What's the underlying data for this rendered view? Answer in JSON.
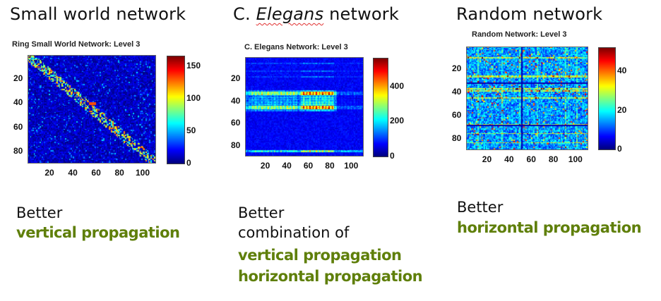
{
  "headings": {
    "small_world": "Small world network",
    "elegans_prefix": "C. ",
    "elegans_italic": "Elegans",
    "elegans_suffix": " network",
    "random": "Random network"
  },
  "captions": {
    "small_world": {
      "line1": "Better",
      "line2": "vertical propagation"
    },
    "elegans": {
      "line1": "Better",
      "line2": "combination of",
      "line3": "vertical propagation",
      "line4": "horizontal propagation"
    },
    "random": {
      "line1": "Better",
      "line2": "horizontal propagation"
    }
  },
  "colors": {
    "accent_green": "#5f7f0a",
    "colormap": "jet"
  },
  "chart_data": [
    {
      "type": "heatmap",
      "title": "Ring Small World Network: Level 3",
      "matrix_size": [
        89,
        110
      ],
      "pattern": "block-diagonal",
      "xticks": [
        "20",
        "40",
        "60",
        "80",
        "100"
      ],
      "yticks": [
        "20",
        "40",
        "60",
        "80"
      ],
      "xlim": [
        1,
        110
      ],
      "ylim": [
        1,
        89
      ],
      "colorbar_ticks": [
        "0",
        "50",
        "100",
        "150"
      ],
      "clim": [
        0,
        165
      ],
      "seed": 11
    },
    {
      "type": "heatmap",
      "title": "C. Elegans Network: Level 3",
      "matrix_size": [
        89,
        110
      ],
      "pattern": "row-column-bands",
      "xticks": [
        "20",
        "40",
        "60",
        "80",
        "100"
      ],
      "yticks": [
        "20",
        "40",
        "60",
        "80"
      ],
      "xlim": [
        1,
        110
      ],
      "ylim": [
        1,
        89
      ],
      "colorbar_ticks": [
        "0",
        "200",
        "400"
      ],
      "clim": [
        0,
        560
      ],
      "seed": 23
    },
    {
      "type": "heatmap",
      "title": "Random Network: Level 3",
      "matrix_size": [
        89,
        110
      ],
      "pattern": "uniform-random",
      "xticks": [
        "20",
        "40",
        "60",
        "80",
        "100"
      ],
      "yticks": [
        "20",
        "40",
        "60",
        "80"
      ],
      "xlim": [
        1,
        110
      ],
      "ylim": [
        1,
        89
      ],
      "colorbar_ticks": [
        "0",
        "20",
        "40"
      ],
      "clim": [
        0,
        52
      ],
      "seed": 37
    }
  ]
}
